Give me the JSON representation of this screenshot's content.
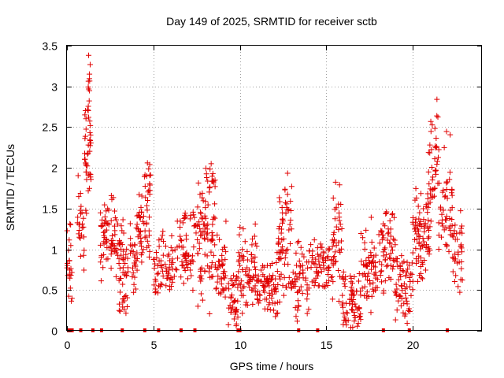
{
  "chart_data": {
    "type": "scatter",
    "title": "Day 149 of 2025, SRMTID for receiver sctb",
    "xlabel": "GPS time / hours",
    "ylabel": "SRMTID / TECUs",
    "xlim": [
      0,
      24
    ],
    "ylim": [
      0,
      3.5
    ],
    "x_ticks": [
      0,
      5,
      10,
      15,
      20
    ],
    "x_tick_labels": [
      "0",
      "5",
      "10",
      "15",
      "20"
    ],
    "y_ticks": [
      0,
      0.5,
      1,
      1.5,
      2,
      2.5,
      3,
      3.5
    ],
    "y_tick_labels": [
      "0",
      "0.5",
      "1",
      "1.5",
      "2",
      "2.5",
      "3",
      "3.5"
    ],
    "grid": true,
    "marker": "+",
    "color": "#e00000",
    "zero_markers_x": [
      0.1,
      0.2,
      0.3,
      0.8,
      1.5,
      2.0,
      3.2,
      4.5,
      5.3,
      6.6,
      7.4,
      9.9,
      10.0,
      13.4,
      14.5,
      18.3,
      19.8,
      22.0
    ],
    "clusters": [
      {
        "x0": 0.0,
        "x1": 0.3,
        "y": 0.85,
        "spread": 0.4,
        "n": 22
      },
      {
        "x0": 0.6,
        "x1": 1.0,
        "y": 1.3,
        "spread": 0.35,
        "n": 25
      },
      {
        "x0": 1.0,
        "x1": 1.4,
        "y": 2.2,
        "spread": 0.6,
        "n": 40
      },
      {
        "x0": 1.2,
        "x1": 1.35,
        "y": 2.95,
        "spread": 0.25,
        "n": 12
      },
      {
        "x0": 1.9,
        "x1": 3.0,
        "y": 1.15,
        "spread": 0.35,
        "n": 70
      },
      {
        "x0": 3.0,
        "x1": 4.0,
        "y": 0.85,
        "spread": 0.35,
        "n": 60
      },
      {
        "x0": 3.0,
        "x1": 3.5,
        "y": 0.3,
        "spread": 0.2,
        "n": 12
      },
      {
        "x0": 4.0,
        "x1": 4.8,
        "y": 1.25,
        "spread": 0.45,
        "n": 55
      },
      {
        "x0": 4.5,
        "x1": 4.9,
        "y": 1.85,
        "spread": 0.2,
        "n": 12
      },
      {
        "x0": 5.0,
        "x1": 6.5,
        "y": 0.85,
        "spread": 0.3,
        "n": 70
      },
      {
        "x0": 6.5,
        "x1": 7.5,
        "y": 1.05,
        "spread": 0.4,
        "n": 55
      },
      {
        "x0": 7.5,
        "x1": 8.6,
        "y": 1.1,
        "spread": 0.5,
        "n": 80
      },
      {
        "x0": 8.0,
        "x1": 8.6,
        "y": 1.85,
        "spread": 0.2,
        "n": 18
      },
      {
        "x0": 8.6,
        "x1": 9.3,
        "y": 0.7,
        "spread": 0.35,
        "n": 40
      },
      {
        "x0": 9.3,
        "x1": 9.9,
        "y": 0.35,
        "spread": 0.35,
        "n": 40
      },
      {
        "x0": 9.9,
        "x1": 11.0,
        "y": 0.75,
        "spread": 0.35,
        "n": 70
      },
      {
        "x0": 11.0,
        "x1": 12.2,
        "y": 0.5,
        "spread": 0.3,
        "n": 75
      },
      {
        "x0": 12.2,
        "x1": 13.0,
        "y": 1.05,
        "spread": 0.45,
        "n": 55
      },
      {
        "x0": 12.6,
        "x1": 13.0,
        "y": 1.65,
        "spread": 0.25,
        "n": 12
      },
      {
        "x0": 13.0,
        "x1": 14.0,
        "y": 0.6,
        "spread": 0.35,
        "n": 55
      },
      {
        "x0": 14.0,
        "x1": 15.4,
        "y": 0.8,
        "spread": 0.3,
        "n": 70
      },
      {
        "x0": 15.4,
        "x1": 15.9,
        "y": 1.2,
        "spread": 0.5,
        "n": 35
      },
      {
        "x0": 15.9,
        "x1": 17.0,
        "y": 0.35,
        "spread": 0.3,
        "n": 70
      },
      {
        "x0": 17.0,
        "x1": 18.0,
        "y": 0.75,
        "spread": 0.4,
        "n": 60
      },
      {
        "x0": 18.0,
        "x1": 19.0,
        "y": 1.0,
        "spread": 0.45,
        "n": 60
      },
      {
        "x0": 19.0,
        "x1": 20.0,
        "y": 0.6,
        "spread": 0.35,
        "n": 60
      },
      {
        "x0": 20.0,
        "x1": 21.0,
        "y": 1.15,
        "spread": 0.45,
        "n": 80
      },
      {
        "x0": 20.9,
        "x1": 21.5,
        "y": 2.1,
        "spread": 0.5,
        "n": 40
      },
      {
        "x0": 21.5,
        "x1": 22.3,
        "y": 1.55,
        "spread": 0.5,
        "n": 50
      },
      {
        "x0": 22.3,
        "x1": 22.9,
        "y": 0.95,
        "spread": 0.45,
        "n": 35
      }
    ]
  }
}
